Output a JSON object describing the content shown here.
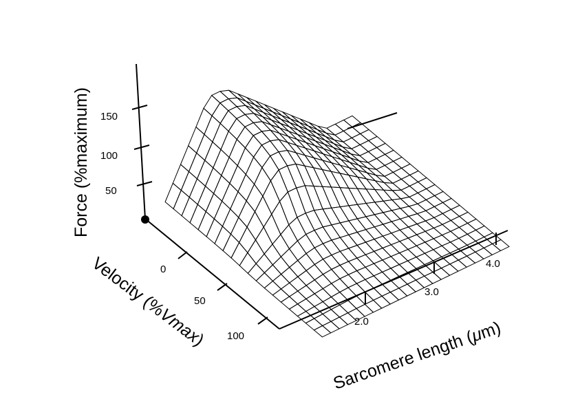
{
  "chart_data": {
    "type": "surface-3d",
    "title": "",
    "axes": {
      "z": {
        "title": "Force (%maximum)",
        "ticks": [
          "50",
          "100",
          "150"
        ]
      },
      "y": {
        "title": "Velocity (%Vmax)",
        "title_plain": "Velocity (%",
        "title_italic": "V",
        "title_sub": "max",
        "title_close": ")",
        "ticks": [
          "0",
          "50",
          "100"
        ]
      },
      "x": {
        "title": "Sarcomere length (μm)",
        "title_plain": "Sarcomere length (",
        "title_italic": "μ",
        "title_close": "m)",
        "ticks": [
          "2.0",
          "3.0",
          "4.0"
        ]
      }
    },
    "surface": {
      "description_values": {
        "sarcomere_length_um": [
          1.6,
          1.8,
          2.0,
          2.2,
          2.4,
          2.6,
          2.8,
          3.0,
          3.2,
          3.4,
          3.6,
          3.8,
          4.0
        ],
        "velocity_pct_vmax": [
          -50,
          -25,
          0,
          25,
          50,
          75,
          100
        ],
        "peak_force_pct": 180
      }
    },
    "colors": {
      "mesh": "#000000",
      "highlight": "#bcbcbc"
    }
  }
}
